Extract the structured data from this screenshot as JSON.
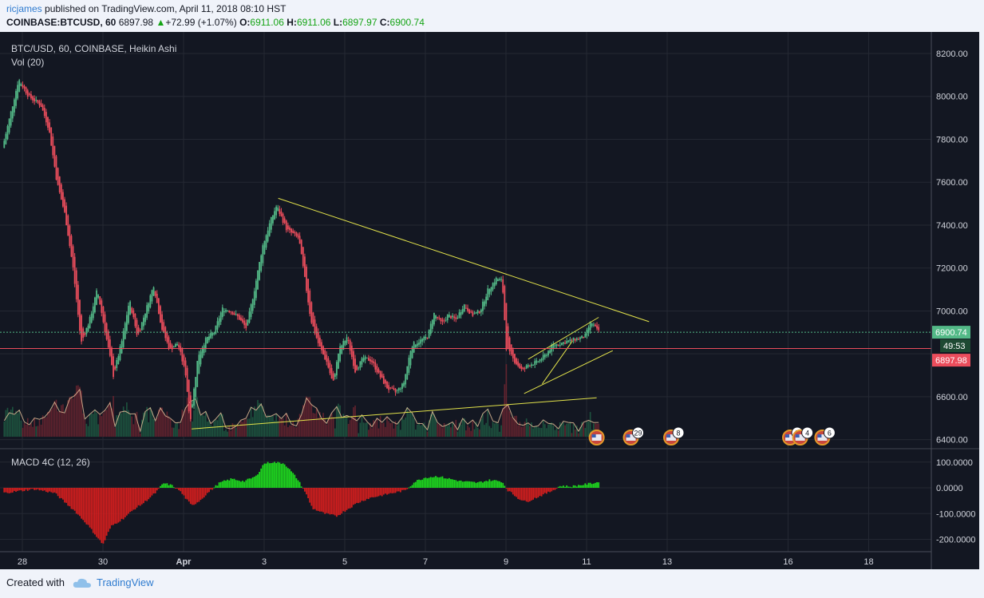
{
  "header": {
    "user": "ricjames",
    "published_text": "published on TradingView.com, April 11, 2018 08:10 HST",
    "symbol": "COINBASE:BTCUSD, 60",
    "last": "6897.98",
    "change": "+72.99 (+1.07%)",
    "o_label": "O:",
    "o": "6911.06",
    "h_label": "H:",
    "h": "6911.06",
    "l_label": "L:",
    "l": "6897.97",
    "c_label": "C:",
    "c": "6900.74"
  },
  "footer": {
    "created_with": "Created with",
    "brand": "TradingView"
  },
  "colors": {
    "bg": "#131722",
    "up": "#53b987",
    "down": "#eb4d5c",
    "trend": "#e3e34b",
    "macd_up": "#1ed81e",
    "macd_down": "#d21e1e",
    "vol_ma": "#f0c8a0"
  },
  "chart_data": [
    {
      "type": "candlestick",
      "title": "BTC/USD, 60, COINBASE, Heikin Ashi",
      "indicator_label": "Vol (20)",
      "ylim": [
        6360,
        8300
      ],
      "y_ticks": [
        8200,
        8000,
        7800,
        7600,
        7400,
        7200,
        7000,
        6800,
        6600,
        6400
      ],
      "y_tick_labels": [
        "8200.00",
        "8000.00",
        "7800.00",
        "7600.00",
        "7400.00",
        "7200.00",
        "7000.00",
        "",
        "6600.00",
        "6400.00"
      ],
      "x_ticks": [
        {
          "t": 0,
          "label": "28"
        },
        {
          "t": 2,
          "label": "30"
        },
        {
          "t": 4,
          "label": "Apr"
        },
        {
          "t": 6,
          "label": "3"
        },
        {
          "t": 8,
          "label": "5"
        },
        {
          "t": 10,
          "label": "7"
        },
        {
          "t": 12,
          "label": "9"
        },
        {
          "t": 14,
          "label": "11"
        },
        {
          "t": 16,
          "label": "13"
        },
        {
          "t": 19,
          "label": "16"
        },
        {
          "t": 21,
          "label": "18"
        }
      ],
      "x_unit": "days since Mar 28",
      "price_path": [
        [
          -0.45,
          7760
        ],
        [
          -0.05,
          8080
        ],
        [
          0.2,
          8000
        ],
        [
          0.5,
          7960
        ],
        [
          0.7,
          7850
        ],
        [
          0.9,
          7600
        ],
        [
          1.1,
          7450
        ],
        [
          1.3,
          7200
        ],
        [
          1.5,
          6850
        ],
        [
          1.7,
          6950
        ],
        [
          1.9,
          7100
        ],
        [
          2.1,
          6900
        ],
        [
          2.3,
          6700
        ],
        [
          2.5,
          6850
        ],
        [
          2.7,
          7050
        ],
        [
          2.9,
          6880
        ],
        [
          3.1,
          7000
        ],
        [
          3.3,
          7120
        ],
        [
          3.5,
          6920
        ],
        [
          3.7,
          6820
        ],
        [
          3.9,
          6850
        ],
        [
          4.1,
          6700
        ],
        [
          4.2,
          6480
        ],
        [
          4.4,
          6790
        ],
        [
          4.6,
          6870
        ],
        [
          4.8,
          6900
        ],
        [
          5.0,
          7010
        ],
        [
          5.2,
          7000
        ],
        [
          5.4,
          6970
        ],
        [
          5.6,
          6920
        ],
        [
          5.8,
          7100
        ],
        [
          6.0,
          7300
        ],
        [
          6.2,
          7420
        ],
        [
          6.35,
          7490
        ],
        [
          6.6,
          7380
        ],
        [
          6.9,
          7340
        ],
        [
          7.05,
          7150
        ],
        [
          7.2,
          6960
        ],
        [
          7.4,
          6840
        ],
        [
          7.6,
          6760
        ],
        [
          7.75,
          6660
        ],
        [
          7.9,
          6820
        ],
        [
          8.1,
          6880
        ],
        [
          8.3,
          6720
        ],
        [
          8.5,
          6780
        ],
        [
          8.7,
          6770
        ],
        [
          8.9,
          6700
        ],
        [
          9.1,
          6640
        ],
        [
          9.3,
          6620
        ],
        [
          9.5,
          6660
        ],
        [
          9.7,
          6840
        ],
        [
          9.9,
          6860
        ],
        [
          10.1,
          6880
        ],
        [
          10.25,
          6990
        ],
        [
          10.45,
          6940
        ],
        [
          10.6,
          6980
        ],
        [
          10.8,
          6960
        ],
        [
          11.0,
          7030
        ],
        [
          11.2,
          6980
        ],
        [
          11.4,
          7000
        ],
        [
          11.6,
          7100
        ],
        [
          11.8,
          7150
        ],
        [
          11.95,
          7140
        ],
        [
          12.05,
          6830
        ],
        [
          12.2,
          6780
        ],
        [
          12.45,
          6720
        ],
        [
          12.6,
          6750
        ],
        [
          12.8,
          6760
        ],
        [
          13.0,
          6790
        ],
        [
          13.2,
          6840
        ],
        [
          13.4,
          6850
        ],
        [
          13.6,
          6860
        ],
        [
          13.8,
          6870
        ],
        [
          14.0,
          6880
        ],
        [
          14.15,
          6950
        ],
        [
          14.3,
          6910
        ]
      ],
      "trendlines": [
        {
          "t1": 6.35,
          "p1": 7525,
          "t2": 15.55,
          "p2": 6950
        },
        {
          "t1": 4.2,
          "p1": 6450,
          "t2": 14.25,
          "p2": 6595
        },
        {
          "t1": 12.45,
          "p1": 6615,
          "t2": 14.65,
          "p2": 6815
        },
        {
          "t1": 12.55,
          "p1": 6775,
          "t2": 14.3,
          "p2": 6970
        },
        {
          "t1": 12.9,
          "p1": 6660,
          "t2": 13.65,
          "p2": 6860
        }
      ],
      "hlines": [
        {
          "price": 6900.74,
          "label": "6900.74",
          "label_color": "#53b987",
          "line_color": "#53b987",
          "dashed": true
        },
        {
          "price": 6825,
          "label": "",
          "label_color": "",
          "line_color": "#eb4d5c",
          "dashed": false
        },
        {
          "price": 6897.98,
          "label": "6897.98",
          "label_color": "#eb4d5c",
          "line_color": "",
          "dashed": false
        }
      ],
      "countdown_label": "49:53",
      "event_markers": [
        {
          "t": 14.25,
          "count": ""
        },
        {
          "t": 15.1,
          "count": "29"
        },
        {
          "t": 16.1,
          "count": "8"
        },
        {
          "t": 19.05,
          "count": "5"
        },
        {
          "t": 19.3,
          "count": "4"
        },
        {
          "t": 19.85,
          "count": "6"
        }
      ]
    },
    {
      "type": "histogram",
      "title": "MACD 4C (12, 26)",
      "ylim": [
        -240,
        140
      ],
      "y_ticks": [
        100,
        0,
        -100,
        -200
      ],
      "y_tick_labels": [
        "100.0000",
        "0.0000",
        "-100.0000",
        "-200.0000"
      ],
      "macd_path": [
        [
          -0.45,
          -20
        ],
        [
          0.3,
          -5
        ],
        [
          0.8,
          -20
        ],
        [
          1.3,
          -90
        ],
        [
          1.6,
          -140
        ],
        [
          1.8,
          -180
        ],
        [
          2.0,
          -220
        ],
        [
          2.2,
          -150
        ],
        [
          2.5,
          -120
        ],
        [
          2.8,
          -80
        ],
        [
          3.0,
          -60
        ],
        [
          3.3,
          -20
        ],
        [
          3.5,
          18
        ],
        [
          3.7,
          10
        ],
        [
          3.9,
          -10
        ],
        [
          4.2,
          -70
        ],
        [
          4.4,
          -50
        ],
        [
          4.6,
          -20
        ],
        [
          4.9,
          20
        ],
        [
          5.2,
          35
        ],
        [
          5.5,
          25
        ],
        [
          5.8,
          45
        ],
        [
          6.0,
          95
        ],
        [
          6.2,
          100
        ],
        [
          6.5,
          95
        ],
        [
          6.8,
          40
        ],
        [
          7.0,
          -10
        ],
        [
          7.2,
          -80
        ],
        [
          7.5,
          -100
        ],
        [
          7.8,
          -110
        ],
        [
          8.0,
          -90
        ],
        [
          8.3,
          -60
        ],
        [
          8.6,
          -40
        ],
        [
          8.9,
          -30
        ],
        [
          9.2,
          -20
        ],
        [
          9.5,
          -10
        ],
        [
          9.75,
          25
        ],
        [
          10.0,
          40
        ],
        [
          10.3,
          45
        ],
        [
          10.6,
          35
        ],
        [
          10.9,
          25
        ],
        [
          11.3,
          20
        ],
        [
          11.6,
          30
        ],
        [
          11.9,
          25
        ],
        [
          12.05,
          -10
        ],
        [
          12.3,
          -40
        ],
        [
          12.5,
          -55
        ],
        [
          12.8,
          -35
        ],
        [
          13.1,
          -15
        ],
        [
          13.35,
          8
        ],
        [
          13.6,
          5
        ],
        [
          13.9,
          12
        ],
        [
          14.3,
          22
        ]
      ]
    }
  ]
}
